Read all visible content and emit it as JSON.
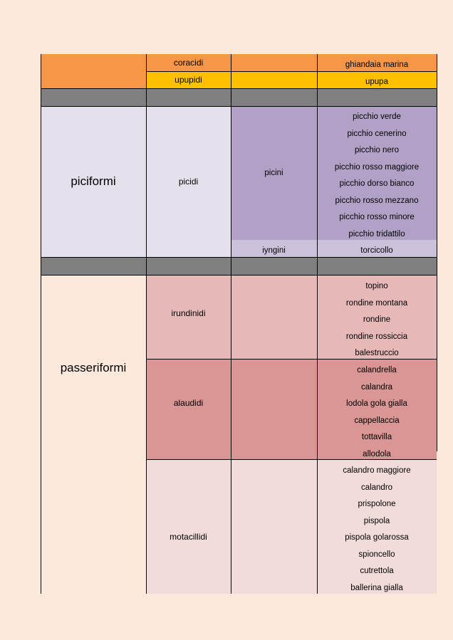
{
  "rows": {
    "coraciformi": {
      "coracidi": {
        "family": "coracidi",
        "species": "ghiandaia marina"
      },
      "upupidi": {
        "family": "upupidi",
        "species": "upupa"
      }
    },
    "piciformi": {
      "order": "piciformi",
      "family": "picidi",
      "picini": {
        "subfamily": "picini",
        "species": [
          "picchio verde",
          "picchio cenerino",
          "picchio nero",
          "picchio rosso maggiore",
          "picchio dorso bianco",
          "picchio rosso mezzano",
          "picchio rosso minore",
          "picchio tridattilo"
        ]
      },
      "iyngini": {
        "subfamily": "iyngini",
        "species": "torcicollo"
      }
    },
    "passeriformi": {
      "order": "passeriformi",
      "irundinidi": {
        "family": "irundinidi",
        "species": [
          "topino",
          "rondine montana",
          "rondine",
          "rondine rossiccia",
          "balestruccio"
        ]
      },
      "alaudidi": {
        "family": "alaudidi",
        "species": [
          "calandrella",
          "calandra",
          "lodola gola gialla",
          "cappellaccia",
          "tottavilla",
          "allodola"
        ]
      },
      "motacillidi": {
        "family": "motacillidi",
        "species": [
          "calandro maggiore",
          "calandro",
          "prispolone",
          "pispola",
          "pispola golarossa",
          "spioncello",
          "cutrettola",
          "ballerina gialla"
        ]
      }
    }
  },
  "colors": {
    "page_bg": "#fde9dc",
    "coracidi_orange": "#f79646",
    "upupidi_yellow": "#ffc000",
    "separator_grey": "#808080",
    "piciformi_lavender": "#e5e0ec",
    "picini_purple": "#b2a1c7",
    "iyngini_lilac": "#ccc1da",
    "irundinidi_pink": "#e6b9b8",
    "alaudidi_rose": "#d99694",
    "motacillidi_blush": "#f2dcdb"
  }
}
